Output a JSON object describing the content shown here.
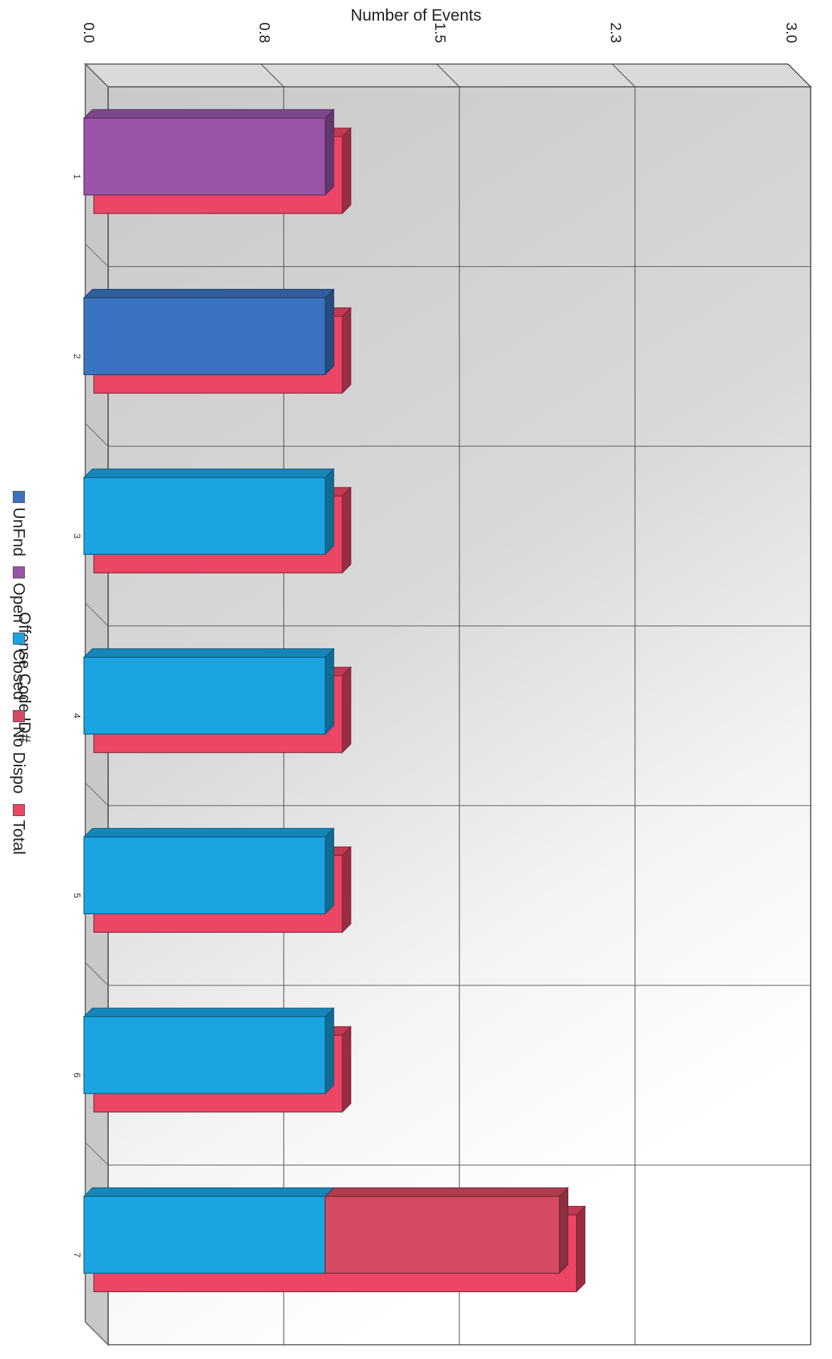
{
  "chart_data": {
    "type": "bar",
    "orientation": "horizontal-3d",
    "xlabel": "Number of Events",
    "legend_title": "Offense Code ID#",
    "legend_position": "bottom",
    "grid": true,
    "xlim": [
      0,
      3.0
    ],
    "x_ticks": [
      "0.0",
      "0.8",
      "1.5",
      "2.3",
      "3.0"
    ],
    "categories": [
      "1",
      "2",
      "3",
      "4",
      "5",
      "6",
      "7"
    ],
    "series": [
      {
        "name": "UnFnd",
        "color": "#3a74c0",
        "values": [
          0,
          1,
          0,
          0,
          0,
          0,
          0
        ]
      },
      {
        "name": "Open",
        "color": "#9a55a8",
        "values": [
          1,
          0,
          0,
          0,
          0,
          0,
          0
        ]
      },
      {
        "name": "Closed",
        "color": "#1aa4e2",
        "values": [
          0,
          0,
          1,
          1,
          1,
          1,
          1
        ]
      },
      {
        "name": "No Dispo",
        "color": "#d44a62",
        "values": [
          0,
          0,
          0,
          0,
          0,
          0,
          1
        ]
      },
      {
        "name": "Total",
        "color": "#ec4565",
        "values": [
          1,
          1,
          1,
          1,
          1,
          1,
          2
        ]
      }
    ]
  }
}
